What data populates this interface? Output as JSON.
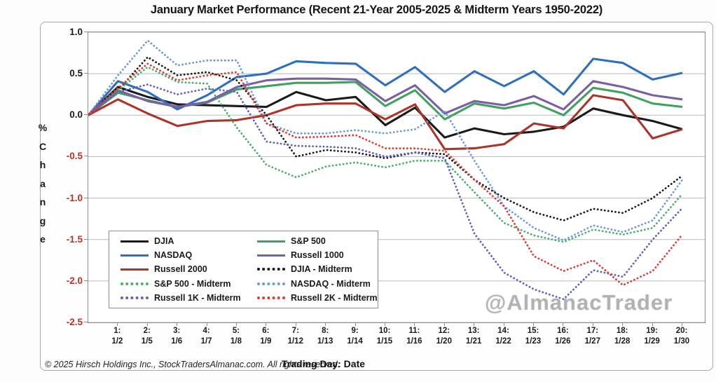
{
  "title": "January Market Performance (Recent 21-Year 2005-2025 & Midterm Years 1950-2022)",
  "watermark": "@AlmanacTrader",
  "footer": {
    "copyright": "© 2025 Hirsch Holdings Inc., StockTradersAlmanac.com. All rights reserved.",
    "x_axis_title": "Trading Day: Date"
  },
  "y_axis": {
    "label": "% Change",
    "negative_tick_color": "#bf3025",
    "positive_tick_color": "#1a1a1a"
  },
  "chart_data": {
    "type": "line",
    "title": "January Market Performance (Recent 21-Year 2005-2025 & Midterm Years 1950-2022)",
    "xlabel": "Trading Day: Date",
    "ylabel": "% Change",
    "ylim": [
      -2.5,
      1.0
    ],
    "grid": true,
    "legend_position": "lower-left box, 2 columns",
    "yticks": [
      "1.0",
      "0.5",
      "0.0",
      "-0.5",
      "-1.0",
      "-1.5",
      "-2.0",
      "-2.5"
    ],
    "x": [
      0,
      1,
      2,
      3,
      4,
      5,
      6,
      7,
      8,
      9,
      10,
      11,
      12,
      13,
      14,
      15,
      16,
      17,
      18,
      19,
      20
    ],
    "x_note": "x=0 is the start point where all series equal 0%; ticks shown for trading days 1-20",
    "x_ticks": [
      {
        "day": "1:",
        "date": "1/2"
      },
      {
        "day": "2:",
        "date": "1/5"
      },
      {
        "day": "3:",
        "date": "1/6"
      },
      {
        "day": "4:",
        "date": "1/7"
      },
      {
        "day": "5:",
        "date": "1/8"
      },
      {
        "day": "6:",
        "date": "1/9"
      },
      {
        "day": "7:",
        "date": "1/12"
      },
      {
        "day": "8:",
        "date": "1/13"
      },
      {
        "day": "9:",
        "date": "1/14"
      },
      {
        "day": "10:",
        "date": "1/15"
      },
      {
        "day": "11:",
        "date": "1/16"
      },
      {
        "day": "12:",
        "date": "1/20"
      },
      {
        "day": "13:",
        "date": "1/21"
      },
      {
        "day": "14:",
        "date": "1/22"
      },
      {
        "day": "15:",
        "date": "1/23"
      },
      {
        "day": "16:",
        "date": "1/26"
      },
      {
        "day": "17:",
        "date": "1/27"
      },
      {
        "day": "18:",
        "date": "1/28"
      },
      {
        "day": "19:",
        "date": "1/29"
      },
      {
        "day": "20:",
        "date": "1/30"
      }
    ],
    "series": [
      {
        "name": "DJIA",
        "color": "#1a1a1a",
        "style": "solid",
        "values": [
          0,
          0.34,
          0.22,
          0.13,
          0.12,
          0.11,
          0.1,
          0.28,
          0.18,
          0.22,
          -0.12,
          0.09,
          -0.27,
          -0.16,
          -0.23,
          -0.2,
          -0.14,
          0.08,
          0.0,
          -0.07,
          -0.17
        ]
      },
      {
        "name": "S&P 500",
        "color": "#41a15e",
        "style": "solid",
        "values": [
          0,
          0.27,
          0.18,
          0.1,
          0.15,
          0.31,
          0.35,
          0.39,
          0.39,
          0.4,
          0.11,
          0.3,
          -0.05,
          0.14,
          0.08,
          0.15,
          0.0,
          0.33,
          0.27,
          0.14,
          0.1
        ]
      },
      {
        "name": "NASDAQ",
        "color": "#2e6fbe",
        "style": "solid",
        "values": [
          0,
          0.41,
          0.28,
          0.07,
          0.24,
          0.46,
          0.5,
          0.65,
          0.63,
          0.62,
          0.36,
          0.58,
          0.28,
          0.53,
          0.35,
          0.53,
          0.25,
          0.68,
          0.63,
          0.43,
          0.51
        ]
      },
      {
        "name": "Russell 1000",
        "color": "#7b5ea7",
        "style": "solid",
        "values": [
          0,
          0.3,
          0.17,
          0.1,
          0.16,
          0.34,
          0.42,
          0.44,
          0.44,
          0.43,
          0.17,
          0.36,
          0.02,
          0.17,
          0.12,
          0.23,
          0.07,
          0.41,
          0.34,
          0.24,
          0.19
        ]
      },
      {
        "name": "Russell 2000",
        "color": "#ac3529",
        "style": "solid",
        "values": [
          0,
          0.19,
          0.02,
          -0.13,
          -0.07,
          -0.06,
          0.0,
          0.12,
          0.14,
          0.14,
          -0.05,
          0.13,
          -0.41,
          -0.4,
          -0.35,
          -0.1,
          -0.16,
          0.24,
          0.18,
          -0.28,
          -0.17
        ]
      },
      {
        "name": "DJIA - Midterm",
        "color": "#1a1a1a",
        "style": "dotted",
        "values": [
          0,
          0.3,
          0.7,
          0.48,
          0.52,
          0.42,
          0.0,
          -0.5,
          -0.42,
          -0.45,
          -0.52,
          -0.45,
          -0.47,
          -0.78,
          -1.0,
          -1.17,
          -1.27,
          -1.13,
          -1.18,
          -1.0,
          -0.73
        ]
      },
      {
        "name": "S&P 500 - Midterm",
        "color": "#45b16c",
        "style": "dotted",
        "values": [
          0,
          0.3,
          0.58,
          0.4,
          0.38,
          -0.15,
          -0.6,
          -0.75,
          -0.62,
          -0.57,
          -0.63,
          -0.55,
          -0.55,
          -0.93,
          -1.3,
          -1.45,
          -1.53,
          -1.38,
          -1.44,
          -1.36,
          -0.95
        ]
      },
      {
        "name": "NASDAQ - Midterm",
        "color": "#699bd8",
        "style": "dotted",
        "values": [
          0,
          0.48,
          0.9,
          0.6,
          0.66,
          0.66,
          -0.1,
          -0.22,
          -0.22,
          -0.18,
          -0.22,
          -0.17,
          0.05,
          -0.55,
          -1.1,
          -1.36,
          -1.51,
          -1.33,
          -1.41,
          -1.27,
          -0.78
        ]
      },
      {
        "name": "Russell 1K - Midterm",
        "color": "#5f5fc4",
        "style": "dotted",
        "values": [
          0,
          0.28,
          0.37,
          0.25,
          0.32,
          0.28,
          -0.32,
          -0.37,
          -0.38,
          -0.4,
          -0.5,
          -0.45,
          -0.52,
          -1.43,
          -1.9,
          -2.1,
          -2.22,
          -1.87,
          -1.95,
          -1.5,
          -1.12
        ]
      },
      {
        "name": "Russell 2K - Midterm",
        "color": "#dd3b33",
        "style": "dotted",
        "values": [
          0,
          0.33,
          0.62,
          0.42,
          0.48,
          0.52,
          -0.1,
          -0.27,
          -0.26,
          -0.24,
          -0.4,
          -0.4,
          -0.43,
          -0.78,
          -1.1,
          -1.7,
          -1.88,
          -1.75,
          -2.05,
          -1.88,
          -1.44
        ]
      }
    ]
  }
}
